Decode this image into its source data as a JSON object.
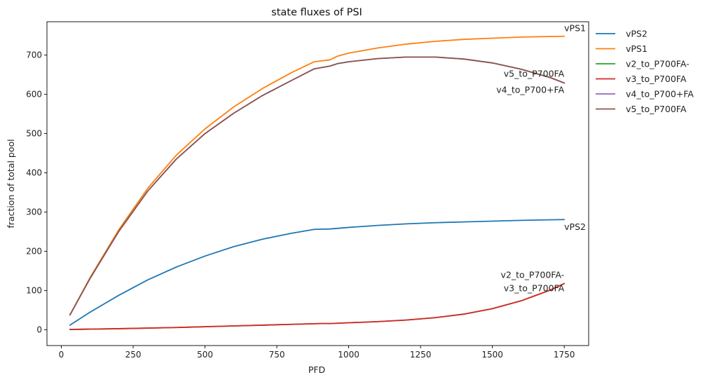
{
  "chart_data": {
    "type": "line",
    "title": "state fluxes of PSI",
    "xlabel": "PFD",
    "ylabel": "fraction of total pool",
    "xlim": [
      -50,
      1835
    ],
    "ylim": [
      -40,
      785
    ],
    "xticks": [
      0,
      250,
      500,
      750,
      1000,
      1250,
      1500,
      1750
    ],
    "yticks": [
      0,
      100,
      200,
      300,
      400,
      500,
      600,
      700
    ],
    "grid": false,
    "legend": "outside-right",
    "series": [
      {
        "name": "vPS2",
        "color": "#1f77b4",
        "points": [
          [
            30,
            12
          ],
          [
            100,
            45
          ],
          [
            200,
            88
          ],
          [
            300,
            127
          ],
          [
            400,
            160
          ],
          [
            500,
            188
          ],
          [
            600,
            212
          ],
          [
            700,
            231
          ],
          [
            800,
            246
          ],
          [
            880,
            256
          ],
          [
            935,
            257
          ],
          [
            1000,
            261
          ],
          [
            1100,
            266
          ],
          [
            1200,
            270
          ],
          [
            1300,
            273
          ],
          [
            1400,
            275
          ],
          [
            1500,
            277
          ],
          [
            1600,
            279
          ],
          [
            1750,
            281
          ]
        ]
      },
      {
        "name": "vPS1",
        "color": "#ff7f0e",
        "points": [
          [
            30,
            38
          ],
          [
            100,
            133
          ],
          [
            200,
            255
          ],
          [
            300,
            360
          ],
          [
            400,
            445
          ],
          [
            500,
            512
          ],
          [
            600,
            568
          ],
          [
            700,
            615
          ],
          [
            800,
            655
          ],
          [
            880,
            683
          ],
          [
            935,
            688
          ],
          [
            960,
            697
          ],
          [
            1000,
            705
          ],
          [
            1100,
            718
          ],
          [
            1200,
            728
          ],
          [
            1300,
            735
          ],
          [
            1400,
            740
          ],
          [
            1500,
            743
          ],
          [
            1600,
            746
          ],
          [
            1750,
            748
          ]
        ]
      },
      {
        "name": "v2_to_P700FA-",
        "color": "#2ca02c",
        "points": [
          [
            30,
            1
          ],
          [
            200,
            3
          ],
          [
            400,
            6
          ],
          [
            600,
            10
          ],
          [
            800,
            14
          ],
          [
            900,
            16
          ],
          [
            935,
            16
          ],
          [
            1000,
            18
          ],
          [
            1100,
            21
          ],
          [
            1200,
            25
          ],
          [
            1300,
            31
          ],
          [
            1400,
            40
          ],
          [
            1500,
            54
          ],
          [
            1600,
            74
          ],
          [
            1700,
            101
          ],
          [
            1750,
            118
          ]
        ]
      },
      {
        "name": "v3_to_P700FA",
        "color": "#d62728",
        "points": [
          [
            30,
            1
          ],
          [
            200,
            3
          ],
          [
            400,
            6
          ],
          [
            600,
            10
          ],
          [
            800,
            14
          ],
          [
            900,
            16
          ],
          [
            935,
            16
          ],
          [
            1000,
            18
          ],
          [
            1100,
            21
          ],
          [
            1200,
            25
          ],
          [
            1300,
            31
          ],
          [
            1400,
            40
          ],
          [
            1500,
            54
          ],
          [
            1600,
            74
          ],
          [
            1700,
            101
          ],
          [
            1750,
            118
          ]
        ]
      },
      {
        "name": "v4_to_P700+FA",
        "color": "#9467bd",
        "points": [
          [
            30,
            38
          ],
          [
            100,
            131
          ],
          [
            200,
            251
          ],
          [
            300,
            353
          ],
          [
            400,
            435
          ],
          [
            500,
            500
          ],
          [
            600,
            552
          ],
          [
            700,
            597
          ],
          [
            800,
            635
          ],
          [
            880,
            665
          ],
          [
            935,
            672
          ],
          [
            960,
            678
          ],
          [
            1000,
            683
          ],
          [
            1100,
            691
          ],
          [
            1200,
            695
          ],
          [
            1300,
            695
          ],
          [
            1400,
            690
          ],
          [
            1500,
            680
          ],
          [
            1600,
            664
          ],
          [
            1700,
            643
          ],
          [
            1750,
            629
          ]
        ]
      },
      {
        "name": "v5_to_P700FA",
        "color": "#8c564b",
        "points": [
          [
            30,
            38
          ],
          [
            100,
            131
          ],
          [
            200,
            251
          ],
          [
            300,
            353
          ],
          [
            400,
            435
          ],
          [
            500,
            500
          ],
          [
            600,
            552
          ],
          [
            700,
            597
          ],
          [
            800,
            635
          ],
          [
            880,
            665
          ],
          [
            935,
            672
          ],
          [
            960,
            678
          ],
          [
            1000,
            683
          ],
          [
            1100,
            691
          ],
          [
            1200,
            695
          ],
          [
            1300,
            695
          ],
          [
            1400,
            690
          ],
          [
            1500,
            680
          ],
          [
            1600,
            664
          ],
          [
            1700,
            643
          ],
          [
            1750,
            629
          ]
        ]
      }
    ],
    "annotations": [
      {
        "text": "vPS1",
        "x": 1750,
        "y": 748,
        "anchor": "start",
        "dy": -7
      },
      {
        "text": "v5_to_P700FA",
        "x": 1750,
        "y": 629,
        "anchor": "end",
        "dy": -9
      },
      {
        "text": "v4_to_P700+FA",
        "x": 1750,
        "y": 629,
        "anchor": "end",
        "dy": 14
      },
      {
        "text": "vPS2",
        "x": 1750,
        "y": 281,
        "anchor": "start",
        "dy": 15
      },
      {
        "text": "v2_to_P700FA-",
        "x": 1750,
        "y": 118,
        "anchor": "end",
        "dy": -8
      },
      {
        "text": "v3_to_P700FA",
        "x": 1750,
        "y": 118,
        "anchor": "end",
        "dy": 11
      }
    ]
  }
}
